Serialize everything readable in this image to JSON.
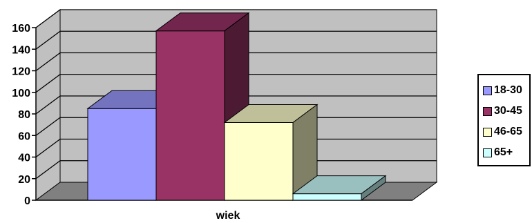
{
  "chart_data": {
    "type": "bar",
    "categories": [
      "wiek"
    ],
    "series": [
      {
        "name": "18-30",
        "values": [
          85
        ],
        "color": "#9999FF"
      },
      {
        "name": "30-45",
        "values": [
          157
        ],
        "color": "#993366"
      },
      {
        "name": "46-65",
        "values": [
          72
        ],
        "color": "#FFFFCC"
      },
      {
        "name": "65+",
        "values": [
          6
        ],
        "color": "#CCFFFF"
      }
    ],
    "xlabel": "wiek",
    "ylabel": "",
    "ylim": [
      0,
      160
    ],
    "yticks": [
      "0",
      "20",
      "40",
      "60",
      "80",
      "100",
      "120",
      "140",
      "160"
    ],
    "grid": true,
    "style": "3d",
    "legend_position": "right",
    "colors": {
      "wall": "#C0C0C0",
      "floor": "#808080"
    }
  }
}
